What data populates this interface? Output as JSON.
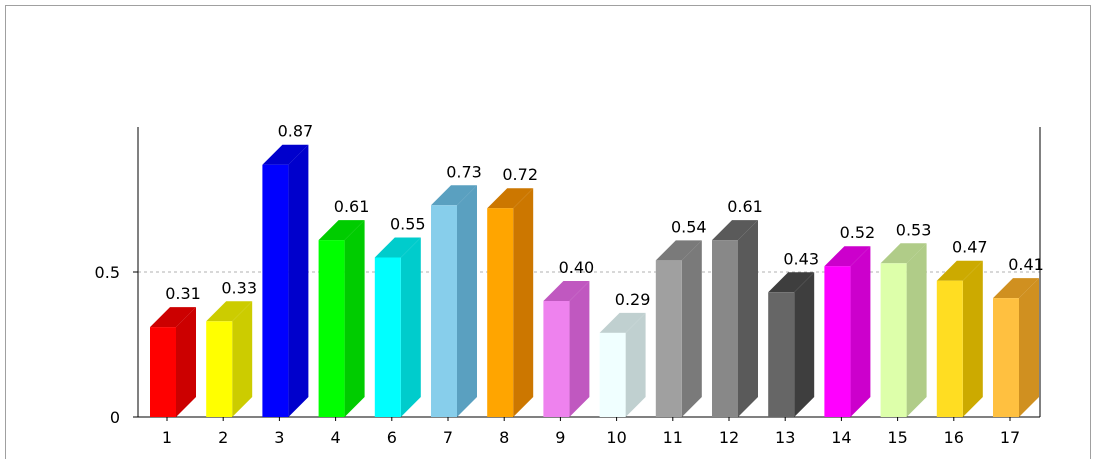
{
  "chart_data": {
    "type": "bar",
    "title": "",
    "xlabel": "",
    "ylabel": "",
    "ylim": [
      0,
      1.0
    ],
    "yticks": [
      0,
      0.5
    ],
    "ytick_labels": [
      "0",
      "0.5"
    ],
    "grid": "dashed line at 0.5",
    "legend": "none",
    "bar_style": "3d",
    "categories": [
      "1",
      "2",
      "3",
      "4",
      "6",
      "7",
      "8",
      "9",
      "10",
      "11",
      "12",
      "13",
      "14",
      "15",
      "16",
      "17"
    ],
    "values": [
      0.31,
      0.33,
      0.87,
      0.61,
      0.55,
      0.73,
      0.72,
      0.4,
      0.29,
      0.54,
      0.61,
      0.43,
      0.52,
      0.53,
      0.47,
      0.41
    ],
    "data_labels": [
      "0.31",
      "0.33",
      "0.87",
      "0.61",
      "0.55",
      "0.73",
      "0.72",
      "0.40",
      "0.29",
      "0.54",
      "0.61",
      "0.43",
      "0.52",
      "0.53",
      "0.47",
      "0.41"
    ],
    "colors": [
      "#ff0000",
      "#ffff00",
      "#0000ff",
      "#00ff00",
      "#00ffff",
      "#87ceeb",
      "#ffa500",
      "#ee82ee",
      "#f0ffff",
      "#a0a0a0",
      "#888888",
      "#666666",
      "#ff00ff",
      "#ddffaa",
      "#ffdd22",
      "#ffc040"
    ],
    "side_colors": [
      "#cc0000",
      "#cccc00",
      "#0000cc",
      "#00cc00",
      "#00cccc",
      "#5aa0c0",
      "#cc7700",
      "#c058c0",
      "#c0d0d0",
      "#7a7a7a",
      "#5a5a5a",
      "#3e3e3e",
      "#cc00cc",
      "#b0cc88",
      "#ccaa00",
      "#d09020"
    ]
  }
}
